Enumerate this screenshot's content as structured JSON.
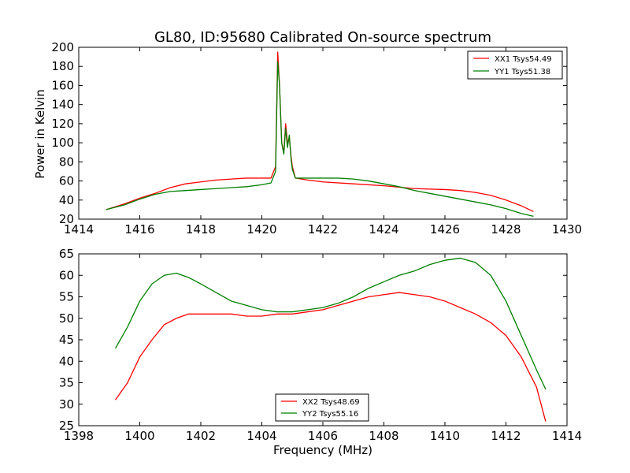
{
  "chart_data": [
    {
      "type": "line",
      "title": "GL80, ID:95680 Calibrated On-source spectrum",
      "xlabel": "",
      "ylabel": "Power in Kelvin",
      "xlim": [
        1414,
        1430
      ],
      "ylim": [
        20,
        200
      ],
      "xticks": [
        "1414",
        "1416",
        "1418",
        "1420",
        "1422",
        "1424",
        "1426",
        "1428",
        "1430"
      ],
      "yticks": [
        "20",
        "40",
        "60",
        "80",
        "100",
        "120",
        "140",
        "160",
        "180",
        "200"
      ],
      "grid": false,
      "legend_position": "top-right",
      "series": [
        {
          "name": "XX1 Tsys54.49",
          "color": "#ff0000",
          "points": [
            [
              1414.9,
              30
            ],
            [
              1415.5,
              36
            ],
            [
              1416.0,
              42
            ],
            [
              1416.5,
              47
            ],
            [
              1417.0,
              53
            ],
            [
              1417.5,
              57
            ],
            [
              1418.0,
              59
            ],
            [
              1418.5,
              61
            ],
            [
              1419.0,
              62
            ],
            [
              1419.5,
              63
            ],
            [
              1420.0,
              63
            ],
            [
              1420.3,
              63
            ],
            [
              1420.45,
              75
            ],
            [
              1420.52,
              195
            ],
            [
              1420.58,
              160
            ],
            [
              1420.65,
              100
            ],
            [
              1420.72,
              90
            ],
            [
              1420.78,
              120
            ],
            [
              1420.84,
              100
            ],
            [
              1420.9,
              105
            ],
            [
              1420.96,
              85
            ],
            [
              1421.0,
              75
            ],
            [
              1421.1,
              63
            ],
            [
              1421.5,
              61
            ],
            [
              1422.0,
              59
            ],
            [
              1423.0,
              57
            ],
            [
              1424.0,
              55
            ],
            [
              1425.0,
              52
            ],
            [
              1426.0,
              51
            ],
            [
              1426.5,
              50
            ],
            [
              1427.0,
              48
            ],
            [
              1427.5,
              45
            ],
            [
              1428.0,
              40
            ],
            [
              1428.5,
              34
            ],
            [
              1428.9,
              28
            ]
          ]
        },
        {
          "name": "YY1 Tsys51.38",
          "color": "#008000",
          "points": [
            [
              1414.9,
              30
            ],
            [
              1415.5,
              35
            ],
            [
              1416.0,
              41
            ],
            [
              1416.5,
              46
            ],
            [
              1417.0,
              49
            ],
            [
              1417.5,
              50
            ],
            [
              1418.0,
              51
            ],
            [
              1418.5,
              52
            ],
            [
              1419.0,
              53
            ],
            [
              1419.5,
              54
            ],
            [
              1420.0,
              56
            ],
            [
              1420.3,
              58
            ],
            [
              1420.45,
              70
            ],
            [
              1420.52,
              185
            ],
            [
              1420.58,
              160
            ],
            [
              1420.65,
              100
            ],
            [
              1420.72,
              88
            ],
            [
              1420.78,
              115
            ],
            [
              1420.84,
              95
            ],
            [
              1420.9,
              108
            ],
            [
              1420.96,
              82
            ],
            [
              1421.0,
              72
            ],
            [
              1421.1,
              63
            ],
            [
              1421.5,
              63
            ],
            [
              1422.0,
              63
            ],
            [
              1422.5,
              63
            ],
            [
              1423.0,
              62
            ],
            [
              1423.5,
              60
            ],
            [
              1424.0,
              57
            ],
            [
              1424.5,
              54
            ],
            [
              1425.0,
              50
            ],
            [
              1425.5,
              47
            ],
            [
              1426.0,
              44
            ],
            [
              1426.5,
              41
            ],
            [
              1427.0,
              38
            ],
            [
              1427.5,
              35
            ],
            [
              1428.0,
              31
            ],
            [
              1428.5,
              26
            ],
            [
              1428.9,
              23
            ]
          ]
        }
      ]
    },
    {
      "type": "line",
      "title": "",
      "xlabel": "Frequency (MHz)",
      "ylabel": "",
      "xlim": [
        1398,
        1414
      ],
      "ylim": [
        25,
        65
      ],
      "xticks": [
        "1398",
        "1400",
        "1402",
        "1404",
        "1406",
        "1408",
        "1410",
        "1412",
        "1414"
      ],
      "yticks": [
        "25",
        "30",
        "35",
        "40",
        "45",
        "50",
        "55",
        "60",
        "65"
      ],
      "grid": false,
      "legend_position": "bottom-center",
      "series": [
        {
          "name": "XX2 Tsys48.69",
          "color": "#ff0000",
          "points": [
            [
              1399.2,
              31
            ],
            [
              1399.6,
              35
            ],
            [
              1400.0,
              41
            ],
            [
              1400.4,
              45
            ],
            [
              1400.8,
              48.5
            ],
            [
              1401.2,
              50
            ],
            [
              1401.6,
              51
            ],
            [
              1402.0,
              51
            ],
            [
              1402.5,
              51
            ],
            [
              1403.0,
              51
            ],
            [
              1403.5,
              50.5
            ],
            [
              1404.0,
              50.5
            ],
            [
              1404.5,
              51
            ],
            [
              1405.0,
              51
            ],
            [
              1405.5,
              51.5
            ],
            [
              1406.0,
              52
            ],
            [
              1406.5,
              53
            ],
            [
              1407.0,
              54
            ],
            [
              1407.5,
              55
            ],
            [
              1408.0,
              55.5
            ],
            [
              1408.5,
              56
            ],
            [
              1409.0,
              55.5
            ],
            [
              1409.5,
              55
            ],
            [
              1410.0,
              54
            ],
            [
              1410.5,
              52.5
            ],
            [
              1411.0,
              51
            ],
            [
              1411.5,
              49
            ],
            [
              1412.0,
              46
            ],
            [
              1412.5,
              41
            ],
            [
              1413.0,
              34
            ],
            [
              1413.3,
              26
            ]
          ]
        },
        {
          "name": "YY2 Tsys55.16",
          "color": "#008000",
          "points": [
            [
              1399.2,
              43
            ],
            [
              1399.6,
              48
            ],
            [
              1400.0,
              54
            ],
            [
              1400.4,
              58
            ],
            [
              1400.8,
              60
            ],
            [
              1401.2,
              60.5
            ],
            [
              1401.6,
              59.5
            ],
            [
              1402.0,
              58
            ],
            [
              1402.5,
              56
            ],
            [
              1403.0,
              54
            ],
            [
              1403.5,
              53
            ],
            [
              1404.0,
              52
            ],
            [
              1404.5,
              51.5
            ],
            [
              1405.0,
              51.5
            ],
            [
              1405.5,
              52
            ],
            [
              1406.0,
              52.5
            ],
            [
              1406.5,
              53.5
            ],
            [
              1407.0,
              55
            ],
            [
              1407.5,
              57
            ],
            [
              1408.0,
              58.5
            ],
            [
              1408.5,
              60
            ],
            [
              1409.0,
              61
            ],
            [
              1409.5,
              62.5
            ],
            [
              1410.0,
              63.5
            ],
            [
              1410.5,
              64
            ],
            [
              1411.0,
              63
            ],
            [
              1411.5,
              60
            ],
            [
              1412.0,
              54
            ],
            [
              1412.5,
              46
            ],
            [
              1413.0,
              38
            ],
            [
              1413.3,
              33.5
            ]
          ]
        }
      ]
    }
  ]
}
